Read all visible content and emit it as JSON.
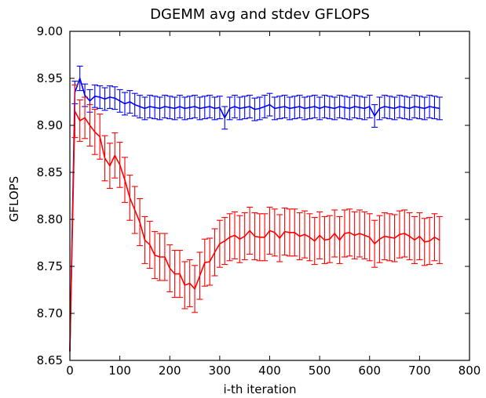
{
  "chart_data": {
    "type": "line",
    "title": "DGEMM avg and stdev GFLOPS",
    "xlabel": "i-th iteration",
    "ylabel": "GFLOPS",
    "xlim": [
      0,
      800
    ],
    "ylim": [
      8.65,
      9.0
    ],
    "x_ticks": [
      "0",
      "100",
      "200",
      "300",
      "400",
      "500",
      "600",
      "700",
      "800"
    ],
    "y_ticks": [
      "8.65",
      "8.70",
      "8.75",
      "8.80",
      "8.85",
      "8.90",
      "8.95",
      "9.00"
    ],
    "grid": false,
    "legend": "none",
    "error_bars": true,
    "series": [
      {
        "color": "#0000ff",
        "x": [
          0,
          10,
          20,
          30,
          40,
          50,
          60,
          70,
          80,
          90,
          100,
          110,
          120,
          130,
          140,
          150,
          160,
          170,
          180,
          190,
          200,
          210,
          220,
          230,
          240,
          250,
          260,
          270,
          280,
          290,
          300,
          310,
          320,
          330,
          340,
          350,
          360,
          370,
          380,
          390,
          400,
          410,
          420,
          430,
          440,
          450,
          460,
          470,
          480,
          490,
          500,
          510,
          520,
          530,
          540,
          550,
          560,
          570,
          580,
          590,
          600,
          610,
          620,
          630,
          640,
          650,
          660,
          670,
          680,
          690,
          700,
          710,
          720,
          730,
          740
        ],
        "y": [
          8.66,
          8.935,
          8.95,
          8.932,
          8.926,
          8.931,
          8.93,
          8.928,
          8.93,
          8.929,
          8.926,
          8.923,
          8.925,
          8.922,
          8.92,
          8.918,
          8.92,
          8.919,
          8.918,
          8.92,
          8.919,
          8.918,
          8.92,
          8.918,
          8.919,
          8.92,
          8.918,
          8.919,
          8.92,
          8.918,
          8.919,
          8.908,
          8.918,
          8.92,
          8.918,
          8.919,
          8.92,
          8.917,
          8.918,
          8.92,
          8.922,
          8.918,
          8.919,
          8.92,
          8.918,
          8.919,
          8.92,
          8.918,
          8.919,
          8.92,
          8.918,
          8.92,
          8.919,
          8.918,
          8.92,
          8.919,
          8.918,
          8.92,
          8.919,
          8.918,
          8.92,
          8.91,
          8.918,
          8.92,
          8.919,
          8.918,
          8.92,
          8.919,
          8.918,
          8.92,
          8.919,
          8.918,
          8.92,
          8.919,
          8.918
        ],
        "err": [
          0.0,
          0.012,
          0.013,
          0.012,
          0.012,
          0.012,
          0.012,
          0.012,
          0.012,
          0.012,
          0.012,
          0.012,
          0.012,
          0.012,
          0.012,
          0.012,
          0.012,
          0.012,
          0.012,
          0.012,
          0.012,
          0.012,
          0.012,
          0.012,
          0.012,
          0.012,
          0.012,
          0.012,
          0.012,
          0.012,
          0.012,
          0.012,
          0.012,
          0.012,
          0.012,
          0.012,
          0.012,
          0.012,
          0.012,
          0.012,
          0.012,
          0.012,
          0.012,
          0.012,
          0.012,
          0.012,
          0.012,
          0.012,
          0.012,
          0.012,
          0.012,
          0.012,
          0.012,
          0.012,
          0.012,
          0.012,
          0.012,
          0.012,
          0.012,
          0.012,
          0.012,
          0.012,
          0.012,
          0.012,
          0.012,
          0.012,
          0.012,
          0.012,
          0.012,
          0.012,
          0.012,
          0.012,
          0.012,
          0.012,
          0.012
        ]
      },
      {
        "color": "#ff0000",
        "x": [
          0,
          10,
          20,
          30,
          40,
          50,
          60,
          70,
          80,
          90,
          100,
          110,
          120,
          130,
          140,
          150,
          160,
          170,
          180,
          190,
          200,
          210,
          220,
          230,
          240,
          250,
          260,
          270,
          280,
          290,
          300,
          310,
          320,
          330,
          340,
          350,
          360,
          370,
          380,
          390,
          400,
          410,
          420,
          430,
          440,
          450,
          460,
          470,
          480,
          490,
          500,
          510,
          520,
          530,
          540,
          550,
          560,
          570,
          580,
          590,
          600,
          610,
          620,
          630,
          640,
          650,
          660,
          670,
          680,
          690,
          700,
          710,
          720,
          730,
          740
        ],
        "y": [
          8.66,
          8.915,
          8.905,
          8.908,
          8.9,
          8.893,
          8.888,
          8.865,
          8.857,
          8.868,
          8.858,
          8.842,
          8.823,
          8.81,
          8.797,
          8.778,
          8.773,
          8.762,
          8.76,
          8.76,
          8.748,
          8.742,
          8.742,
          8.73,
          8.732,
          8.726,
          8.74,
          8.754,
          8.755,
          8.765,
          8.774,
          8.777,
          8.781,
          8.783,
          8.779,
          8.782,
          8.788,
          8.782,
          8.781,
          8.781,
          8.788,
          8.786,
          8.78,
          8.787,
          8.786,
          8.786,
          8.782,
          8.784,
          8.781,
          8.777,
          8.783,
          8.778,
          8.779,
          8.785,
          8.778,
          8.785,
          8.786,
          8.783,
          8.785,
          8.783,
          8.781,
          8.774,
          8.779,
          8.782,
          8.781,
          8.78,
          8.784,
          8.785,
          8.782,
          8.778,
          8.782,
          8.776,
          8.777,
          8.781,
          8.778
        ],
        "err": [
          0.0,
          0.028,
          0.022,
          0.022,
          0.022,
          0.024,
          0.024,
          0.024,
          0.024,
          0.024,
          0.024,
          0.024,
          0.024,
          0.025,
          0.025,
          0.025,
          0.025,
          0.025,
          0.025,
          0.025,
          0.025,
          0.025,
          0.025,
          0.025,
          0.025,
          0.025,
          0.025,
          0.025,
          0.025,
          0.025,
          0.025,
          0.025,
          0.025,
          0.025,
          0.025,
          0.025,
          0.025,
          0.025,
          0.025,
          0.025,
          0.025,
          0.025,
          0.025,
          0.025,
          0.025,
          0.025,
          0.025,
          0.025,
          0.025,
          0.025,
          0.025,
          0.025,
          0.025,
          0.025,
          0.025,
          0.025,
          0.025,
          0.025,
          0.025,
          0.025,
          0.025,
          0.025,
          0.025,
          0.025,
          0.025,
          0.025,
          0.025,
          0.025,
          0.025,
          0.025,
          0.025,
          0.025,
          0.025,
          0.025,
          0.025
        ]
      }
    ]
  }
}
